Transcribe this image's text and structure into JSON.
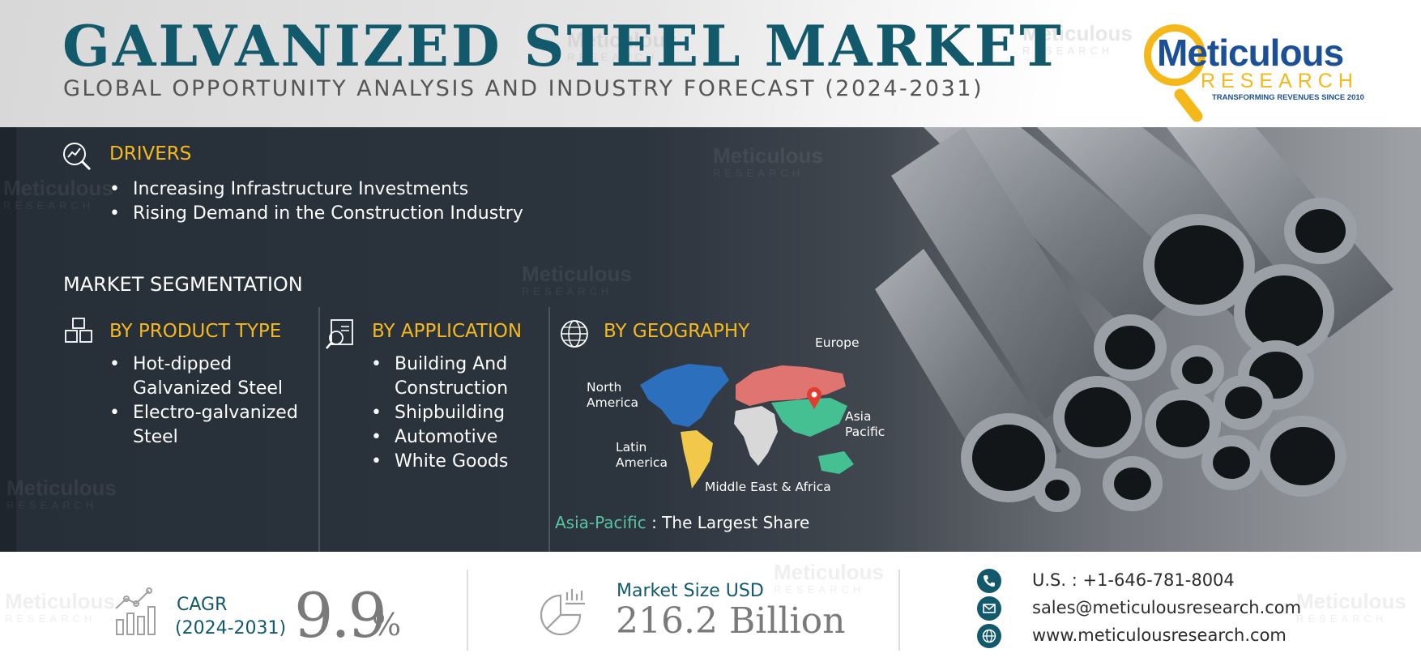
{
  "header": {
    "title": "GALVANIZED STEEL MARKET",
    "subtitle": "GLOBAL OPPORTUNITY ANALYSIS AND INDUSTRY FORECAST (2024-2031)"
  },
  "logo": {
    "name": "Meticulous",
    "sub": "RESEARCH",
    "tagline": "TRANSFORMING REVENUES SINCE 2010"
  },
  "watermark": {
    "name": "Meticulous",
    "sub": "RESEARCH"
  },
  "drivers": {
    "heading": "DRIVERS",
    "icon": "magnifier-chart-icon",
    "items": [
      "Increasing Infrastructure Investments",
      "Rising Demand in the Construction Industry"
    ]
  },
  "segmentation": {
    "heading": "MARKET SEGMENTATION",
    "product_type": {
      "heading": "BY PRODUCT TYPE",
      "icon": "boxes-icon",
      "items": [
        "Hot-dipped Galvanized Steel",
        "Electro-galvanized Steel"
      ]
    },
    "application": {
      "heading": "BY APPLICATION",
      "icon": "document-search-icon",
      "items": [
        "Building And Construction",
        "Shipbuilding",
        "Automotive",
        "White Goods"
      ]
    },
    "geography": {
      "heading": "BY GEOGRAPHY",
      "icon": "globe-icon",
      "map_labels": {
        "europe": "Europe",
        "north_america": "North America",
        "asia_pacific": "Asia Pacific",
        "latin_america": "Latin America",
        "middle_east_africa": "Middle East & Africa"
      },
      "region_colors": {
        "north_america": "#2b6fbd",
        "europe": "#e07470",
        "asia_pacific": "#45c093",
        "latin_america": "#f2c84b",
        "middle_east_africa": "#d8d8d8"
      },
      "share_highlight": "Asia-Pacific",
      "share_separator": ":",
      "share_text": "The Largest Share"
    }
  },
  "footer": {
    "cagr_label": "CAGR",
    "cagr_years": "(2024-2031)",
    "cagr_value": "9.9",
    "cagr_unit": "%",
    "market_size_label": "Market Size USD",
    "market_size_value": "216.2 Billion",
    "phone": "U.S. : +1-646-781-8004",
    "email": "sales@meticulousresearch.com",
    "website": "www.meticulousresearch.com"
  },
  "colors": {
    "brand_teal": "#12596b",
    "accent_yellow": "#f5b91f",
    "logo_blue": "#1b4f96",
    "band_dark": "#2a323c"
  }
}
